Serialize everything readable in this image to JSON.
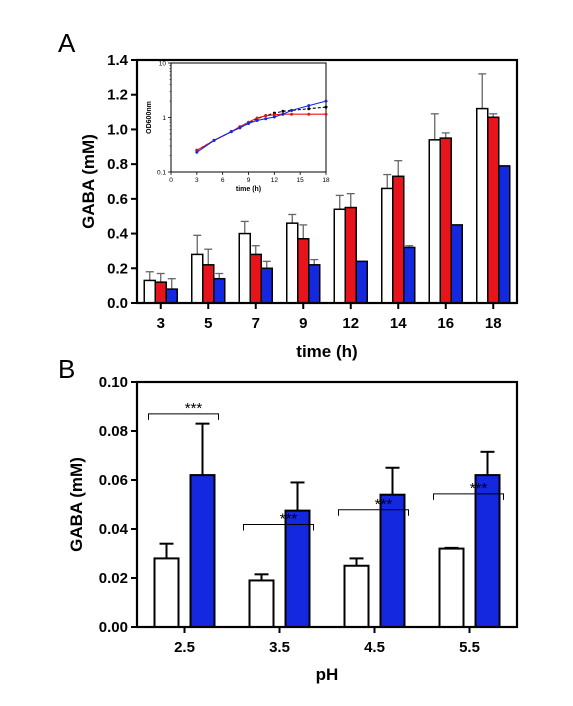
{
  "chart_data": [
    {
      "panel": "A",
      "type": "bar",
      "xlabel": "time (h)",
      "ylabel": "GABA (mM)",
      "ylim": [
        0,
        1.4
      ],
      "yticks": [
        "0.0",
        "0.2",
        "0.4",
        "0.6",
        "0.8",
        "1.0",
        "1.2",
        "1.4"
      ],
      "categories": [
        "3",
        "5",
        "7",
        "9",
        "12",
        "14",
        "16",
        "18"
      ],
      "series": [
        {
          "color": "#ffffff",
          "values": [
            0.13,
            0.28,
            0.4,
            0.46,
            0.54,
            0.66,
            0.94,
            1.12
          ],
          "errors": [
            0.05,
            0.11,
            0.07,
            0.05,
            0.08,
            0.08,
            0.15,
            0.2
          ]
        },
        {
          "color": "#e8141b",
          "values": [
            0.12,
            0.22,
            0.28,
            0.37,
            0.55,
            0.73,
            0.95,
            1.07
          ],
          "errors": [
            0.05,
            0.09,
            0.05,
            0.08,
            0.08,
            0.09,
            0.03,
            0.02
          ]
        },
        {
          "color": "#1428e0",
          "values": [
            0.08,
            0.14,
            0.2,
            0.22,
            0.24,
            0.32,
            0.45,
            0.79
          ],
          "errors": [
            0.06,
            0.03,
            0.04,
            0.03,
            0.0,
            0.01,
            0.0,
            0.0
          ]
        }
      ],
      "inset": {
        "type": "line",
        "xlabel": "time (h)",
        "ylabel": "OD600nm",
        "log_y": true,
        "xlim": [
          0,
          18
        ],
        "ylim": [
          0.1,
          10
        ],
        "xticks": [
          "0",
          "3",
          "6",
          "9",
          "12",
          "15",
          "18"
        ],
        "yticks": [
          "0.1",
          "1",
          "10"
        ],
        "series": [
          {
            "color": "#000000",
            "dashed": true,
            "x": [
              3,
              5,
              7,
              8,
              9,
              10,
              11,
              12,
              13,
              14,
              16,
              18
            ],
            "y": [
              0.25,
              0.38,
              0.55,
              0.65,
              0.78,
              0.95,
              1.08,
              1.2,
              1.3,
              1.35,
              1.45,
              1.55
            ]
          },
          {
            "color": "#e8141b",
            "dashed": false,
            "x": [
              3,
              5,
              7,
              8,
              9,
              10,
              11,
              12,
              13,
              14,
              16,
              18
            ],
            "y": [
              0.25,
              0.38,
              0.55,
              0.68,
              0.82,
              0.98,
              1.08,
              1.12,
              1.15,
              1.15,
              1.15,
              1.15
            ]
          },
          {
            "color": "#1428e0",
            "dashed": false,
            "x": [
              3,
              5,
              7,
              8,
              9,
              10,
              11,
              12,
              13,
              14,
              16,
              18
            ],
            "y": [
              0.23,
              0.38,
              0.55,
              0.65,
              0.78,
              0.88,
              0.95,
              1.02,
              1.15,
              1.35,
              1.65,
              2.0
            ]
          }
        ]
      }
    },
    {
      "panel": "B",
      "type": "bar",
      "xlabel": "pH",
      "ylabel": "GABA (mM)",
      "ylim": [
        0,
        0.1
      ],
      "yticks": [
        "0.00",
        "0.02",
        "0.04",
        "0.06",
        "0.08",
        "0.10"
      ],
      "categories": [
        "2.5",
        "3.5",
        "4.5",
        "5.5"
      ],
      "series": [
        {
          "color": "#ffffff",
          "values": [
            0.028,
            0.019,
            0.025,
            0.032
          ],
          "errors": [
            0.006,
            0.0025,
            0.003,
            0.0003
          ]
        },
        {
          "color": "#1428e0",
          "values": [
            0.062,
            0.0475,
            0.054,
            0.062
          ],
          "errors": [
            0.021,
            0.0115,
            0.011,
            0.0095
          ]
        }
      ],
      "significance": [
        "***",
        "***",
        "***",
        "***"
      ]
    }
  ]
}
